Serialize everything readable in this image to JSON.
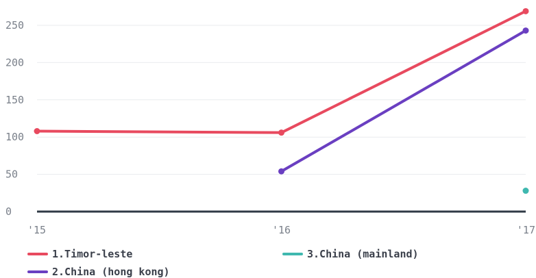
{
  "chart_data": {
    "type": "line",
    "x": [
      "'15",
      "'16",
      "'17"
    ],
    "ylim": [
      0,
      270
    ],
    "yticks": [
      0,
      50,
      100,
      150,
      200,
      250
    ],
    "grid": true,
    "legend_position": "bottom",
    "series": [
      {
        "name": "1.Timor-leste",
        "color": "#e84a5f",
        "values": [
          108,
          106,
          269
        ]
      },
      {
        "name": "2.China (hong kong)",
        "color": "#6a3fc1",
        "values": [
          null,
          54,
          243
        ]
      },
      {
        "name": "3.China (mainland)",
        "color": "#3fb8af",
        "values": [
          null,
          null,
          28
        ]
      }
    ]
  }
}
